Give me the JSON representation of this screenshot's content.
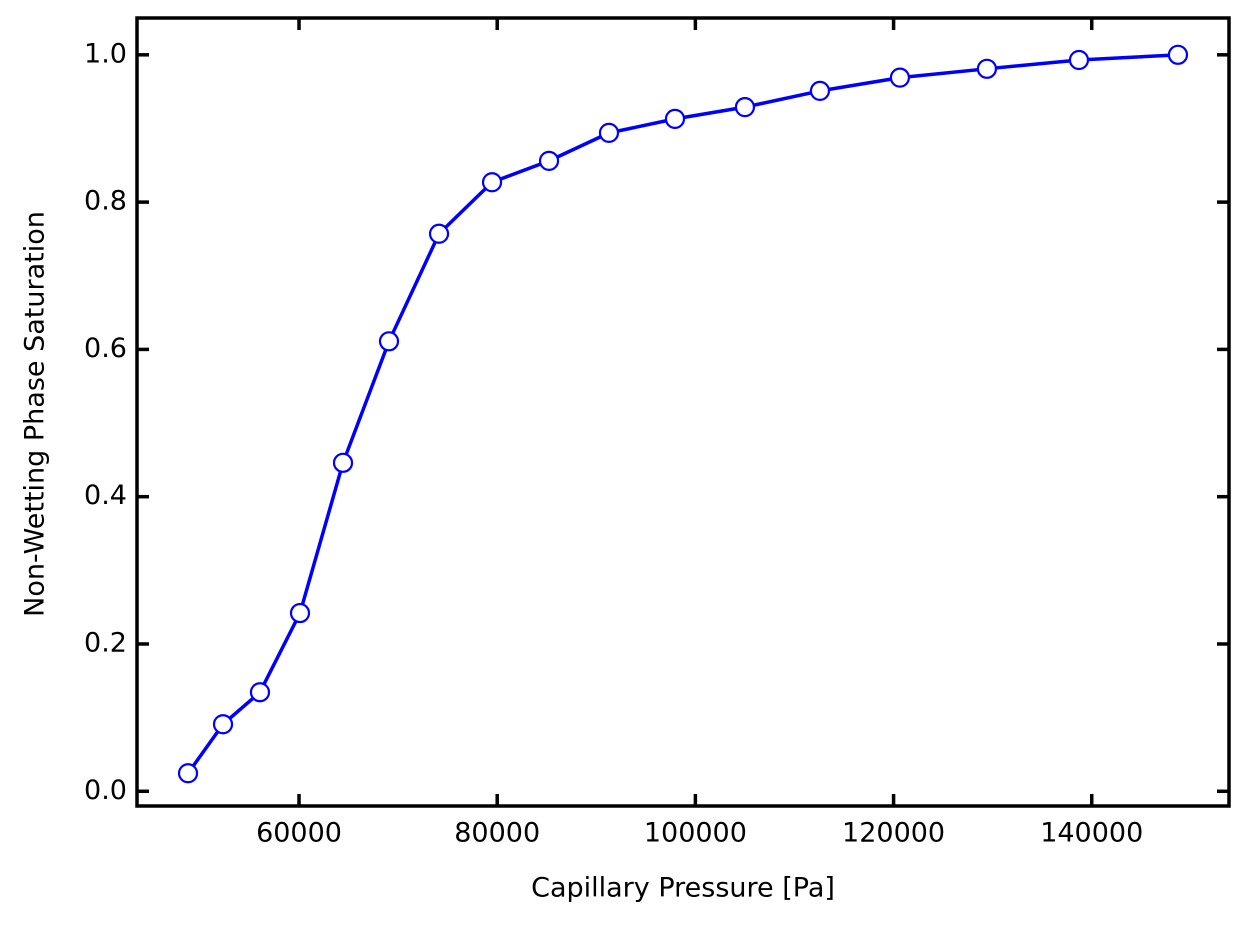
{
  "chart_data": {
    "type": "line",
    "xlabel": "Capillary Pressure [Pa]",
    "ylabel": "Non-Wetting Phase Saturation",
    "x": [
      48800,
      52330,
      56060,
      60100,
      64440,
      69080,
      74130,
      79480,
      85230,
      91280,
      97940,
      105000,
      112570,
      120640,
      129420,
      138710,
      148700
    ],
    "series": [
      {
        "color": "#0000ff",
        "values": [
          0.0245,
          0.091,
          0.1345,
          0.242,
          0.446,
          0.611,
          0.757,
          0.827,
          0.856,
          0.894,
          0.913,
          0.929,
          0.951,
          0.969,
          0.981,
          0.993,
          1.0
        ]
      }
    ],
    "xlim": [
      43650,
      153850
    ],
    "ylim": [
      -0.02,
      1.05
    ],
    "xticks": [
      60000,
      80000,
      100000,
      120000,
      140000
    ],
    "yticks": [
      {
        "value": 0,
        "label": "0.0"
      },
      0.2,
      0.4,
      0.6,
      0.8,
      {
        "value": 1,
        "label": "1.0"
      }
    ],
    "grid": false
  }
}
